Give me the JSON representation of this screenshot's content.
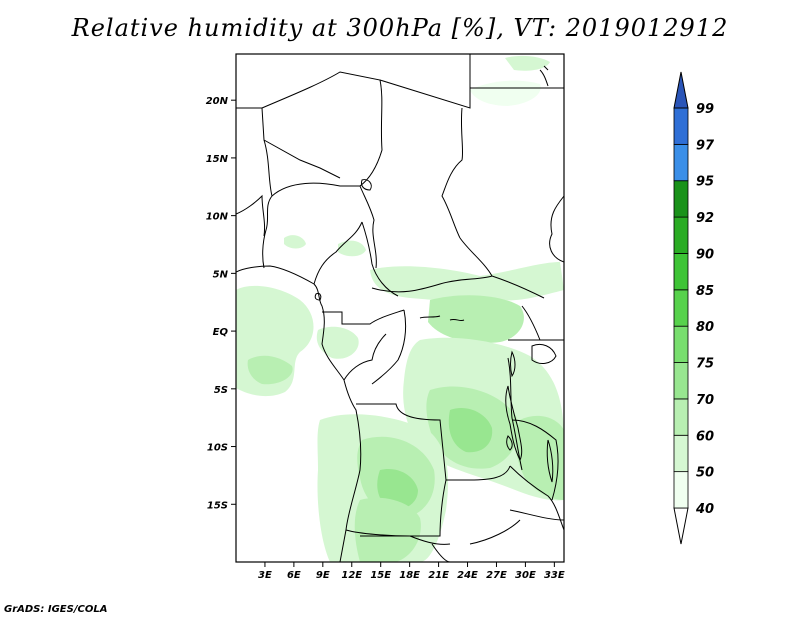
{
  "title": "Relative humidity at 300hPa [%], VT: 2019012912",
  "footer": "GrADS: IGES/COLA",
  "map": {
    "lon_range": [
      0,
      34
    ],
    "lat_range": [
      -20,
      24
    ],
    "lat_ticks": [
      {
        "value": 20,
        "label": "20N"
      },
      {
        "value": 15,
        "label": "15N"
      },
      {
        "value": 10,
        "label": "10N"
      },
      {
        "value": 5,
        "label": "5N"
      },
      {
        "value": 0,
        "label": "EQ"
      },
      {
        "value": -5,
        "label": "5S"
      },
      {
        "value": -10,
        "label": "10S"
      },
      {
        "value": -15,
        "label": "15S"
      }
    ],
    "lon_ticks": [
      {
        "value": 3,
        "label": "3E"
      },
      {
        "value": 6,
        "label": "6E"
      },
      {
        "value": 9,
        "label": "9E"
      },
      {
        "value": 12,
        "label": "12E"
      },
      {
        "value": 15,
        "label": "15E"
      },
      {
        "value": 18,
        "label": "18E"
      },
      {
        "value": 21,
        "label": "21E"
      },
      {
        "value": 24,
        "label": "24E"
      },
      {
        "value": 27,
        "label": "27E"
      },
      {
        "value": 30,
        "label": "30E"
      },
      {
        "value": 33,
        "label": "33E"
      }
    ]
  },
  "colorbar": {
    "levels": [
      "40",
      "50",
      "60",
      "70",
      "75",
      "80",
      "85",
      "90",
      "92",
      "95",
      "97",
      "99"
    ],
    "colors": [
      "#f0fff0",
      "#d5f7d2",
      "#b8efb2",
      "#98e690",
      "#78de6e",
      "#57d24c",
      "#3ec436",
      "#2aac24",
      "#1a921a",
      "#3b8fe8",
      "#2f6fd6",
      "#2a55b8"
    ]
  }
}
